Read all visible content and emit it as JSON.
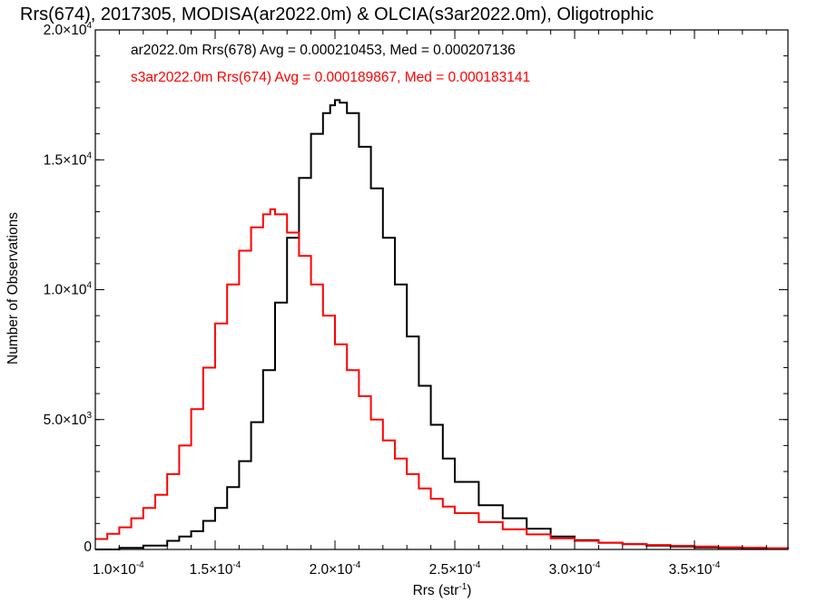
{
  "chart_data": {
    "type": "line",
    "title": "Rrs(674), 2017305, MODISA(ar2022.0m) & OLCIA(s3ar2022.0m), Oligotrophic",
    "xlabel_main": "Rrs (str",
    "xlabel_sup": "-1",
    "xlabel_close": ")",
    "ylabel": "Number of Observations",
    "xlim": [
      0.0001,
      0.000389
    ],
    "ylim": [
      0,
      20000
    ],
    "xticks": [
      {
        "value": 0.0001,
        "mant": "1.0×10",
        "exp": "-4"
      },
      {
        "value": 0.00015,
        "mant": "1.5×10",
        "exp": "-4"
      },
      {
        "value": 0.0002,
        "mant": "2.0×10",
        "exp": "-4"
      },
      {
        "value": 0.00025,
        "mant": "2.5×10",
        "exp": "-4"
      },
      {
        "value": 0.0003,
        "mant": "3.0×10",
        "exp": "-4"
      },
      {
        "value": 0.00035,
        "mant": "3.5×10",
        "exp": "-4"
      }
    ],
    "yticks": [
      {
        "value": 0,
        "mant": "0",
        "exp": ""
      },
      {
        "value": 5000,
        "mant": "5.0×10",
        "exp": "3"
      },
      {
        "value": 10000,
        "mant": "1.0×10",
        "exp": "4"
      },
      {
        "value": 15000,
        "mant": "1.5×10",
        "exp": "4"
      },
      {
        "value": 20000,
        "mant": "2.0×10",
        "exp": "4"
      }
    ],
    "series": [
      {
        "label": "ar2022.0m Rrs(678) Avg = 0.000210453, Med = 0.000207136",
        "color": "#000000",
        "step": true,
        "x": [
          0.0001,
          0.00011,
          0.00012,
          0.00013,
          0.000135,
          0.00014,
          0.000145,
          0.00015,
          0.000155,
          0.00016,
          0.000165,
          0.00017,
          0.000175,
          0.00018,
          0.000185,
          0.00019,
          0.000195,
          0.000198,
          0.0002,
          0.000202,
          0.000205,
          0.00021,
          0.000215,
          0.00022,
          0.000225,
          0.00023,
          0.000235,
          0.00024,
          0.000245,
          0.00025,
          0.00026,
          0.00027,
          0.00028,
          0.00029,
          0.0003,
          0.00031,
          0.00032,
          0.00033,
          0.00034,
          0.00035,
          0.00036,
          0.00037,
          0.00038,
          0.000389
        ],
        "y": [
          0,
          60,
          150,
          330,
          500,
          700,
          1100,
          1600,
          2400,
          3400,
          4900,
          6900,
          9500,
          12000,
          14300,
          16000,
          16800,
          17100,
          17300,
          17200,
          16800,
          15500,
          13900,
          12000,
          10200,
          8200,
          6300,
          4800,
          3500,
          2600,
          1700,
          1200,
          800,
          500,
          360,
          260,
          200,
          150,
          110,
          80,
          60,
          40,
          30,
          20
        ]
      },
      {
        "label": "s3ar2022.0m Rrs(674) Avg = 0.000189867, Med = 0.000183141",
        "color": "#ff0000",
        "step": true,
        "x": [
          0.0001,
          0.000105,
          0.00011,
          0.000115,
          0.00012,
          0.000125,
          0.00013,
          0.000135,
          0.00014,
          0.000145,
          0.00015,
          0.000155,
          0.00016,
          0.000165,
          0.00017,
          0.000173,
          0.000175,
          0.00018,
          0.000185,
          0.00019,
          0.000195,
          0.0002,
          0.000205,
          0.00021,
          0.000215,
          0.00022,
          0.000225,
          0.00023,
          0.000235,
          0.00024,
          0.000245,
          0.00025,
          0.00026,
          0.00027,
          0.00028,
          0.00029,
          0.0003,
          0.00031,
          0.00032,
          0.00033,
          0.00034,
          0.00035,
          0.00036,
          0.00037,
          0.00038,
          0.000389
        ],
        "y": [
          400,
          600,
          850,
          1200,
          1600,
          2100,
          2900,
          4000,
          5400,
          7000,
          8700,
          10200,
          11500,
          12400,
          12900,
          13100,
          12900,
          12200,
          11300,
          10200,
          9000,
          7900,
          6900,
          5900,
          5000,
          4200,
          3500,
          2900,
          2350,
          1950,
          1650,
          1400,
          1050,
          780,
          580,
          430,
          330,
          260,
          210,
          170,
          140,
          110,
          85,
          65,
          50,
          35
        ]
      }
    ],
    "grid": false,
    "legend_position": "top-left"
  }
}
